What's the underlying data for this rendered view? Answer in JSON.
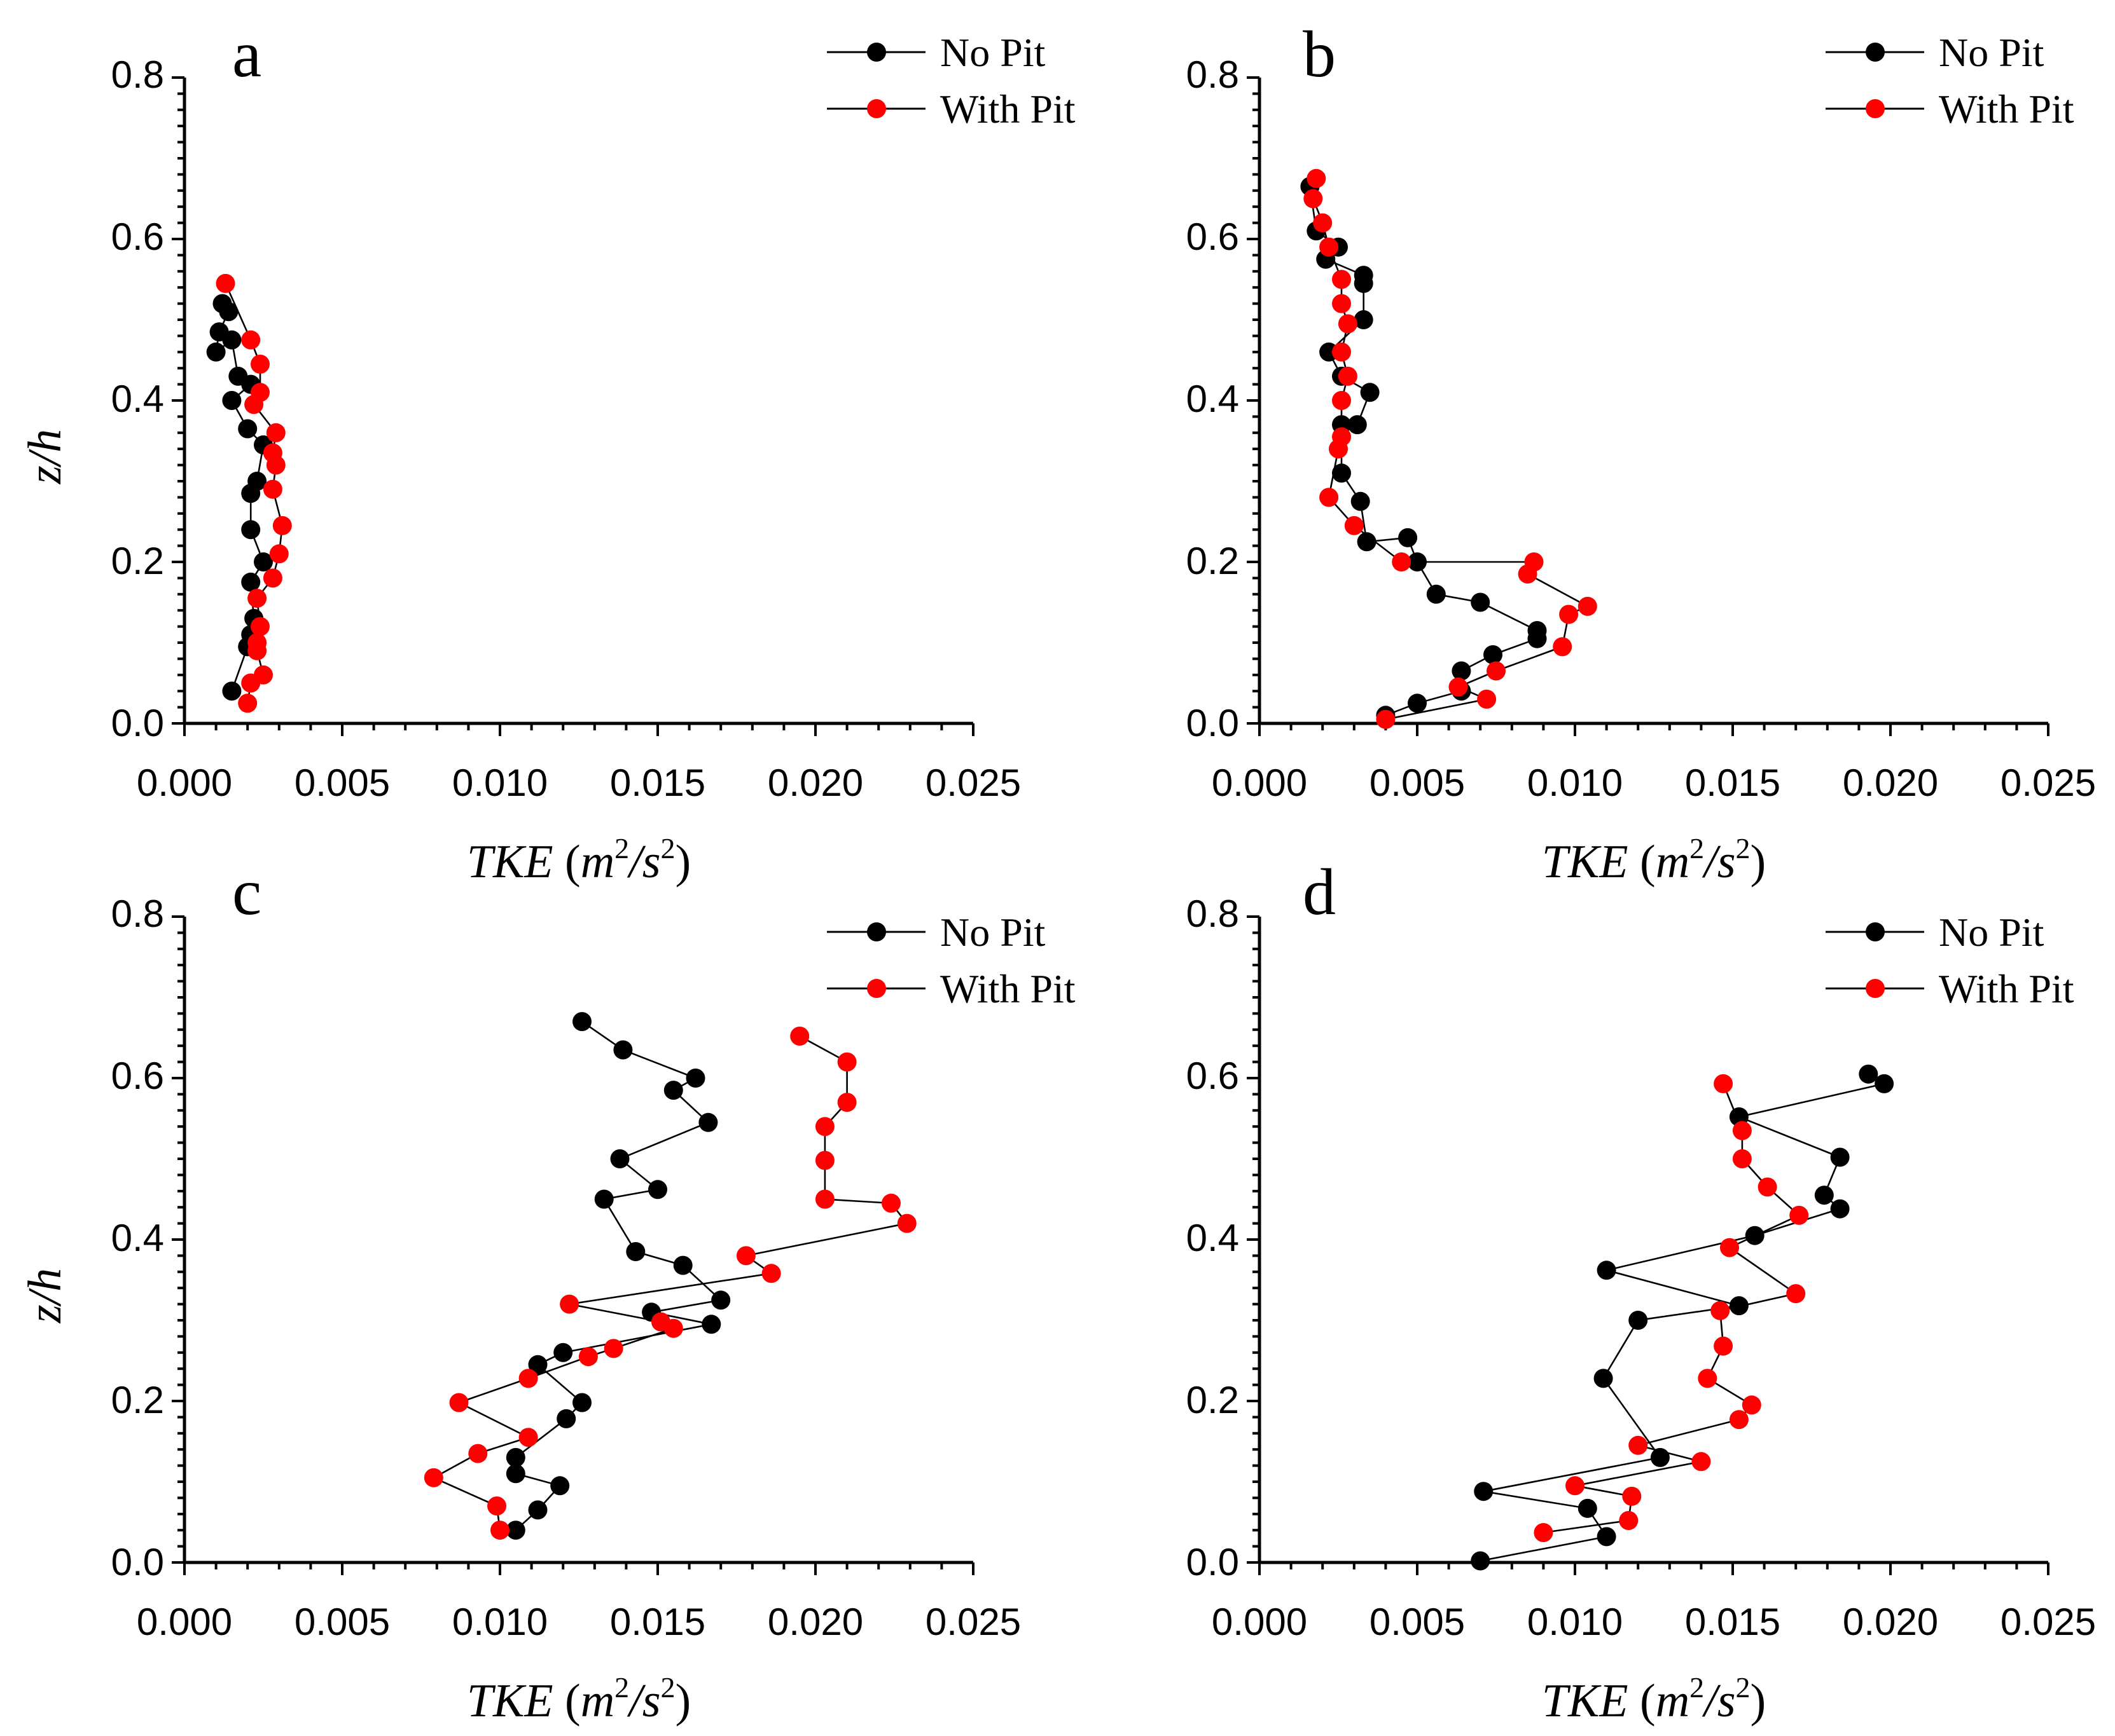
{
  "legend": {
    "no_pit": "No Pit",
    "with_pit": "With Pit"
  },
  "colors": {
    "no_pit": "#000000",
    "with_pit": "#ff0000"
  },
  "axis": {
    "xlabel_main": "TKE",
    "xlabel_open": " (",
    "xlabel_unit_m": "m",
    "xlabel_sup1": "2",
    "xlabel_slash": "/s",
    "xlabel_sup2": "2",
    "xlabel_close": ")",
    "ylabel": "z/h",
    "xticks": [
      "0.000",
      "0.005",
      "0.010",
      "0.015",
      "0.020",
      "0.025"
    ],
    "yticks": [
      "0.0",
      "0.2",
      "0.4",
      "0.6",
      "0.8"
    ]
  },
  "chart_data": [
    {
      "type": "line",
      "panel": "a",
      "xlim": [
        0,
        0.025
      ],
      "ylim": [
        0,
        0.8
      ],
      "xlabel": "TKE (m2/s2)",
      "ylabel": "z/h",
      "series": [
        {
          "name": "No Pit",
          "points": [
            [
              0.0015,
              0.04
            ],
            [
              0.002,
              0.095
            ],
            [
              0.0021,
              0.11
            ],
            [
              0.0022,
              0.13
            ],
            [
              0.0021,
              0.175
            ],
            [
              0.0025,
              0.2
            ],
            [
              0.0021,
              0.24
            ],
            [
              0.0021,
              0.285
            ],
            [
              0.0023,
              0.3
            ],
            [
              0.0025,
              0.345
            ],
            [
              0.002,
              0.365
            ],
            [
              0.0015,
              0.4
            ],
            [
              0.0021,
              0.42
            ],
            [
              0.0017,
              0.43
            ],
            [
              0.0015,
              0.475
            ],
            [
              0.001,
              0.46
            ],
            [
              0.0011,
              0.485
            ],
            [
              0.0014,
              0.51
            ],
            [
              0.0012,
              0.52
            ]
          ]
        },
        {
          "name": "With Pit",
          "points": [
            [
              0.002,
              0.025
            ],
            [
              0.0021,
              0.05
            ],
            [
              0.0025,
              0.06
            ],
            [
              0.0023,
              0.09
            ],
            [
              0.0023,
              0.1
            ],
            [
              0.0024,
              0.12
            ],
            [
              0.0023,
              0.155
            ],
            [
              0.0028,
              0.18
            ],
            [
              0.003,
              0.21
            ],
            [
              0.0031,
              0.245
            ],
            [
              0.0028,
              0.29
            ],
            [
              0.0029,
              0.32
            ],
            [
              0.0028,
              0.335
            ],
            [
              0.0029,
              0.36
            ],
            [
              0.0022,
              0.395
            ],
            [
              0.0024,
              0.41
            ],
            [
              0.0024,
              0.445
            ],
            [
              0.0021,
              0.475
            ],
            [
              0.0013,
              0.545
            ]
          ]
        }
      ]
    },
    {
      "type": "line",
      "panel": "b",
      "xlim": [
        0,
        0.025
      ],
      "ylim": [
        0,
        0.8
      ],
      "xlabel": "TKE (m2/s2)",
      "ylabel": "z/h",
      "series": [
        {
          "name": "No Pit",
          "points": [
            [
              0.004,
              0.01
            ],
            [
              0.005,
              0.025
            ],
            [
              0.0064,
              0.04
            ],
            [
              0.0064,
              0.065
            ],
            [
              0.0074,
              0.085
            ],
            [
              0.0088,
              0.105
            ],
            [
              0.0088,
              0.115
            ],
            [
              0.007,
              0.15
            ],
            [
              0.0056,
              0.16
            ],
            [
              0.005,
              0.2
            ],
            [
              0.0047,
              0.23
            ],
            [
              0.0034,
              0.225
            ],
            [
              0.0032,
              0.275
            ],
            [
              0.0026,
              0.31
            ],
            [
              0.0026,
              0.37
            ],
            [
              0.0031,
              0.37
            ],
            [
              0.0035,
              0.41
            ],
            [
              0.0026,
              0.43
            ],
            [
              0.0022,
              0.46
            ],
            [
              0.0033,
              0.5
            ],
            [
              0.0033,
              0.545
            ],
            [
              0.0033,
              0.555
            ],
            [
              0.0021,
              0.575
            ],
            [
              0.0025,
              0.59
            ],
            [
              0.0018,
              0.61
            ],
            [
              0.0016,
              0.665
            ]
          ]
        },
        {
          "name": "With Pit",
          "points": [
            [
              0.004,
              0.005
            ],
            [
              0.0072,
              0.03
            ],
            [
              0.0063,
              0.045
            ],
            [
              0.0075,
              0.065
            ],
            [
              0.0096,
              0.095
            ],
            [
              0.0098,
              0.135
            ],
            [
              0.0104,
              0.145
            ],
            [
              0.0085,
              0.185
            ],
            [
              0.0087,
              0.2
            ],
            [
              0.0045,
              0.2
            ],
            [
              0.003,
              0.245
            ],
            [
              0.0022,
              0.28
            ],
            [
              0.0025,
              0.34
            ],
            [
              0.0026,
              0.355
            ],
            [
              0.0026,
              0.4
            ],
            [
              0.0028,
              0.43
            ],
            [
              0.0026,
              0.46
            ],
            [
              0.0028,
              0.495
            ],
            [
              0.0026,
              0.52
            ],
            [
              0.0026,
              0.55
            ],
            [
              0.0022,
              0.59
            ],
            [
              0.002,
              0.62
            ],
            [
              0.0017,
              0.65
            ],
            [
              0.0018,
              0.675
            ]
          ]
        }
      ]
    },
    {
      "type": "line",
      "panel": "c",
      "xlim": [
        0,
        0.025
      ],
      "ylim": [
        0,
        0.8
      ],
      "xlabel": "TKE (m2/s2)",
      "ylabel": "z/h",
      "series": [
        {
          "name": "No Pit",
          "points": [
            [
              0.0105,
              0.04
            ],
            [
              0.0112,
              0.065
            ],
            [
              0.0119,
              0.095
            ],
            [
              0.0105,
              0.11
            ],
            [
              0.0105,
              0.13
            ],
            [
              0.0121,
              0.178
            ],
            [
              0.0126,
              0.198
            ],
            [
              0.0112,
              0.245
            ],
            [
              0.012,
              0.26
            ],
            [
              0.0167,
              0.295
            ],
            [
              0.0148,
              0.31
            ],
            [
              0.017,
              0.325
            ],
            [
              0.0158,
              0.368
            ],
            [
              0.0143,
              0.385
            ],
            [
              0.0133,
              0.45
            ],
            [
              0.015,
              0.462
            ],
            [
              0.0138,
              0.5
            ],
            [
              0.0166,
              0.545
            ],
            [
              0.0155,
              0.585
            ],
            [
              0.0162,
              0.6
            ],
            [
              0.0139,
              0.635
            ],
            [
              0.0126,
              0.67
            ]
          ]
        },
        {
          "name": "With Pit",
          "points": [
            [
              0.01,
              0.04
            ],
            [
              0.0099,
              0.07
            ],
            [
              0.0079,
              0.105
            ],
            [
              0.0093,
              0.135
            ],
            [
              0.0109,
              0.155
            ],
            [
              0.0087,
              0.198
            ],
            [
              0.0109,
              0.228
            ],
            [
              0.0128,
              0.255
            ],
            [
              0.0136,
              0.265
            ],
            [
              0.0155,
              0.29
            ],
            [
              0.0151,
              0.298
            ],
            [
              0.0122,
              0.32
            ],
            [
              0.0186,
              0.358
            ],
            [
              0.0178,
              0.38
            ],
            [
              0.0229,
              0.42
            ],
            [
              0.0224,
              0.445
            ],
            [
              0.0203,
              0.45
            ],
            [
              0.0203,
              0.498
            ],
            [
              0.0203,
              0.54
            ],
            [
              0.021,
              0.57
            ],
            [
              0.021,
              0.62
            ],
            [
              0.0195,
              0.652
            ]
          ]
        }
      ]
    },
    {
      "type": "line",
      "panel": "d",
      "xlim": [
        0,
        0.025
      ],
      "ylim": [
        0,
        0.8
      ],
      "xlabel": "TKE (m2/s2)",
      "ylabel": "z/h",
      "series": [
        {
          "name": "No Pit",
          "points": [
            [
              0.007,
              0.002
            ],
            [
              0.011,
              0.032
            ],
            [
              0.0104,
              0.067
            ],
            [
              0.0071,
              0.088
            ],
            [
              0.0127,
              0.13
            ],
            [
              0.0109,
              0.228
            ],
            [
              0.012,
              0.3
            ],
            [
              0.0152,
              0.318
            ],
            [
              0.011,
              0.362
            ],
            [
              0.0157,
              0.405
            ],
            [
              0.0184,
              0.438
            ],
            [
              0.0179,
              0.455
            ],
            [
              0.0184,
              0.502
            ],
            [
              0.0152,
              0.552
            ],
            [
              0.0198,
              0.593
            ],
            [
              0.0193,
              0.605
            ]
          ]
        },
        {
          "name": "With Pit",
          "points": [
            [
              0.009,
              0.037
            ],
            [
              0.0117,
              0.052
            ],
            [
              0.0118,
              0.082
            ],
            [
              0.01,
              0.095
            ],
            [
              0.014,
              0.125
            ],
            [
              0.012,
              0.145
            ],
            [
              0.0152,
              0.177
            ],
            [
              0.0156,
              0.195
            ],
            [
              0.0142,
              0.228
            ],
            [
              0.0147,
              0.268
            ],
            [
              0.0146,
              0.312
            ],
            [
              0.017,
              0.333
            ],
            [
              0.0149,
              0.39
            ],
            [
              0.0171,
              0.43
            ],
            [
              0.0161,
              0.465
            ],
            [
              0.0153,
              0.5
            ],
            [
              0.0153,
              0.535
            ],
            [
              0.0147,
              0.593
            ]
          ]
        }
      ]
    }
  ]
}
